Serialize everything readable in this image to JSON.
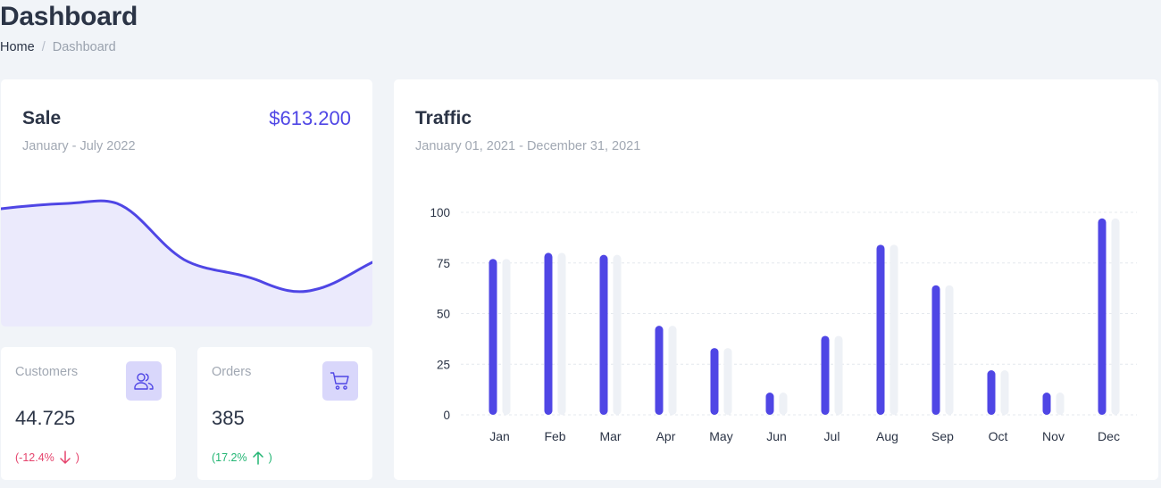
{
  "header": {
    "title": "Dashboard",
    "breadcrumb": {
      "home": "Home",
      "separator": "/",
      "current": "Dashboard"
    }
  },
  "sale": {
    "title": "Sale",
    "amount": "$613.200",
    "period": "January - July 2022",
    "accent": "#4f46e5"
  },
  "customers": {
    "label": "Customers",
    "value": "44.725",
    "change": "(-12.4%",
    "change_close": ")",
    "trend": "down",
    "icon": "users-icon"
  },
  "orders": {
    "label": "Orders",
    "value": "385",
    "change": "(17.2%",
    "change_close": ")",
    "trend": "up",
    "icon": "cart-icon"
  },
  "traffic": {
    "title": "Traffic",
    "period": "January 01, 2021 - December 31, 2021"
  },
  "chart_data": {
    "type": "bar",
    "categories": [
      "Jan",
      "Feb",
      "Mar",
      "Apr",
      "May",
      "Jun",
      "Jul",
      "Aug",
      "Sep",
      "Oct",
      "Nov",
      "Dec"
    ],
    "series": [
      {
        "values": [
          77,
          80,
          79,
          44,
          33,
          11,
          39,
          84,
          64,
          22,
          11,
          97
        ],
        "color": "#4f46e5"
      },
      {
        "values": [
          77,
          80,
          79,
          44,
          33,
          11,
          39,
          84,
          64,
          22,
          11,
          97
        ],
        "color": "#eef1f6"
      }
    ],
    "yticks": [
      0,
      25,
      50,
      75,
      100
    ],
    "ylim": [
      0,
      100
    ],
    "grid": true,
    "legend": "none"
  }
}
